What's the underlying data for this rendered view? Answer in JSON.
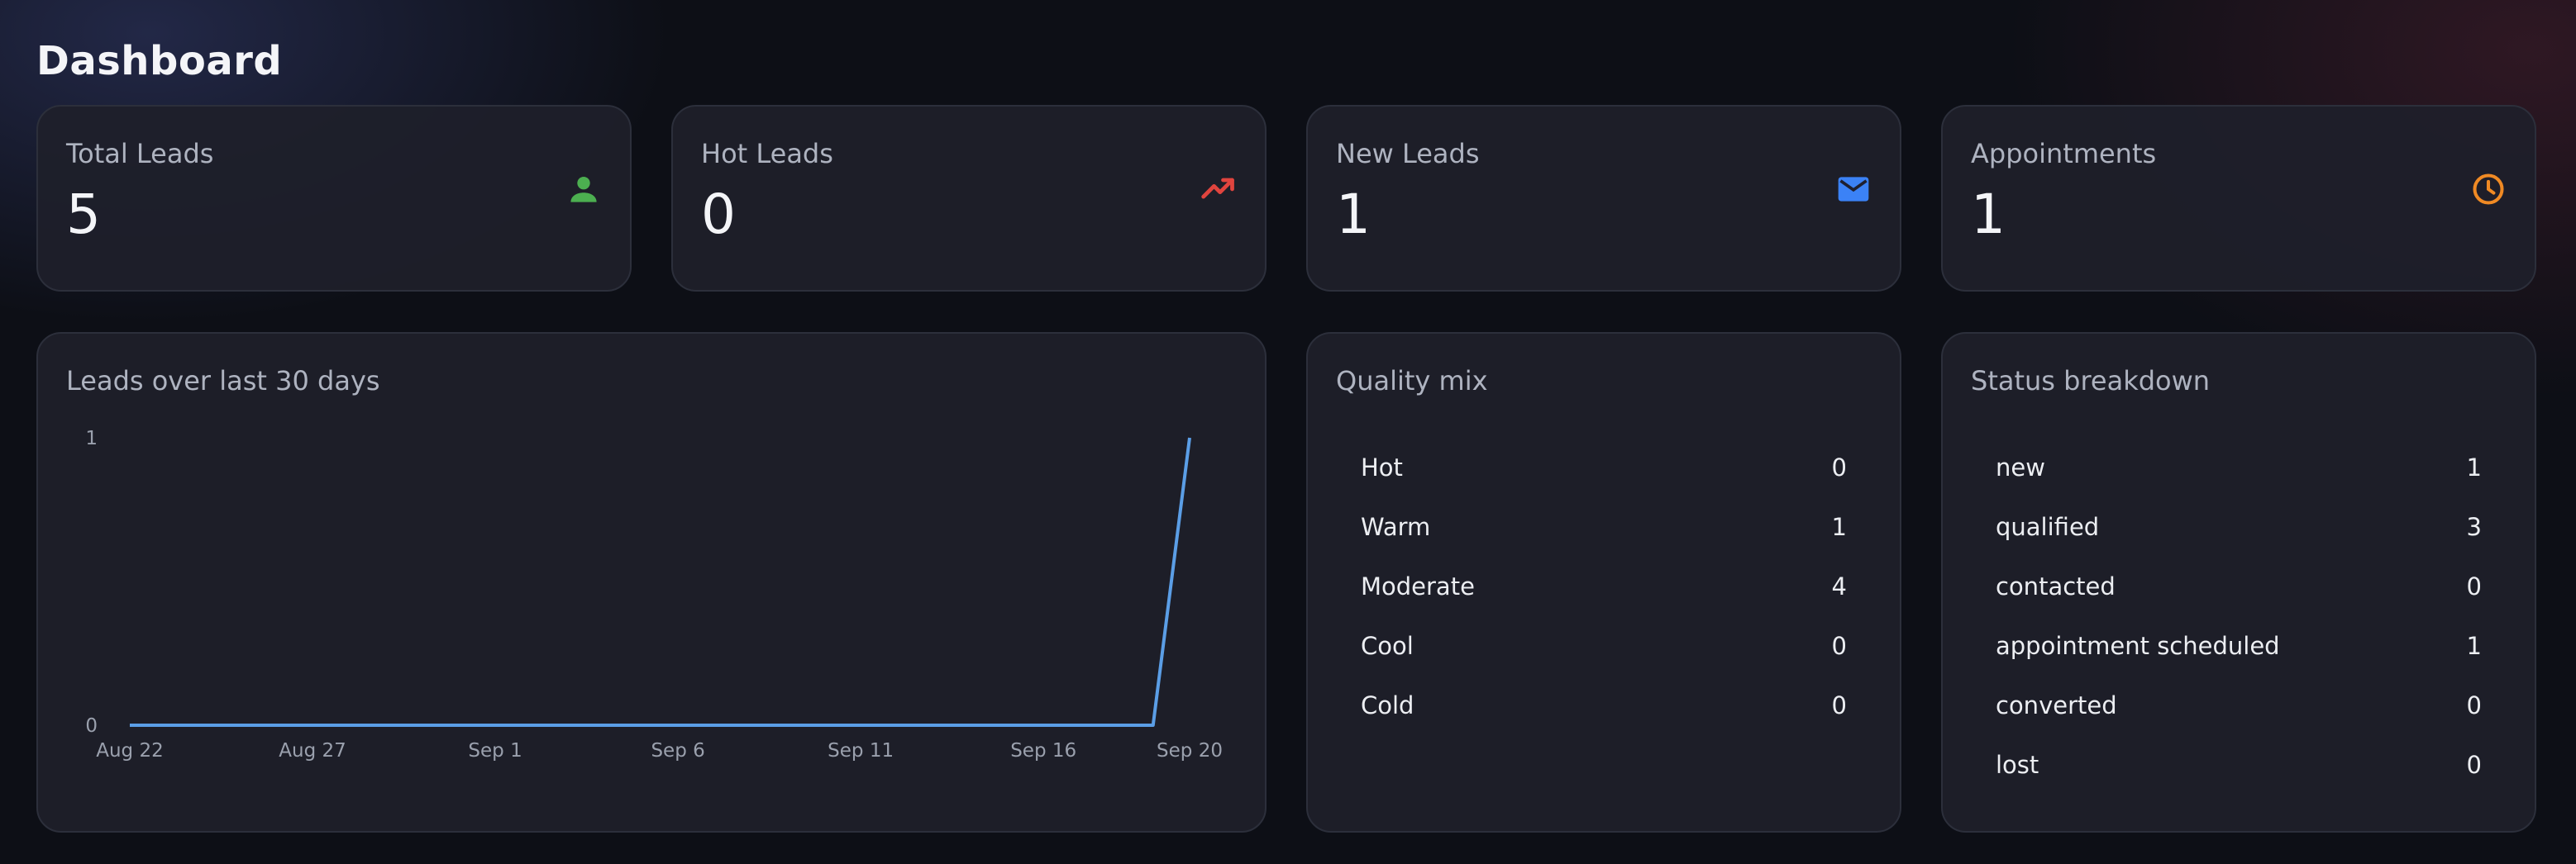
{
  "page": {
    "title": "Dashboard"
  },
  "stats": [
    {
      "label": "Total Leads",
      "value": "5",
      "icon": "person-icon",
      "color": "#4caf50"
    },
    {
      "label": "Hot Leads",
      "value": "0",
      "icon": "trending-up-icon",
      "color": "#e0443e"
    },
    {
      "label": "New Leads",
      "value": "1",
      "icon": "mail-icon",
      "color": "#3b82f6"
    },
    {
      "label": "Appointments",
      "value": "1",
      "icon": "clock-icon",
      "color": "#f08a24"
    }
  ],
  "leads_chart": {
    "title": "Leads over last 30 days",
    "line_color": "#5b9ee6"
  },
  "chart_data": {
    "type": "line",
    "title": "Leads over last 30 days",
    "xlabel": "",
    "ylabel": "",
    "x_start": "Aug 22",
    "x_end": "Sep 20",
    "x_tick_labels": [
      "Aug 22",
      "Aug 27",
      "Sep 1",
      "Sep 6",
      "Sep 11",
      "Sep 16",
      "Sep 20"
    ],
    "y_tick_labels": [
      "0",
      "1"
    ],
    "ylim": [
      0,
      1
    ],
    "grid": false,
    "series": [
      {
        "values": [
          0,
          0,
          0,
          0,
          0,
          0,
          0,
          0,
          0,
          0,
          0,
          0,
          0,
          0,
          0,
          0,
          0,
          0,
          0,
          0,
          0,
          0,
          0,
          0,
          0,
          0,
          0,
          0,
          0,
          1
        ]
      }
    ]
  },
  "quality_mix": {
    "title": "Quality mix",
    "items": [
      {
        "label": "Hot",
        "value": "0"
      },
      {
        "label": "Warm",
        "value": "1"
      },
      {
        "label": "Moderate",
        "value": "4"
      },
      {
        "label": "Cool",
        "value": "0"
      },
      {
        "label": "Cold",
        "value": "0"
      }
    ]
  },
  "status_breakdown": {
    "title": "Status breakdown",
    "items": [
      {
        "label": "new",
        "value": "1"
      },
      {
        "label": "qualified",
        "value": "3"
      },
      {
        "label": "contacted",
        "value": "0"
      },
      {
        "label": "appointment scheduled",
        "value": "1"
      },
      {
        "label": "converted",
        "value": "0"
      },
      {
        "label": "lost",
        "value": "0"
      }
    ]
  }
}
